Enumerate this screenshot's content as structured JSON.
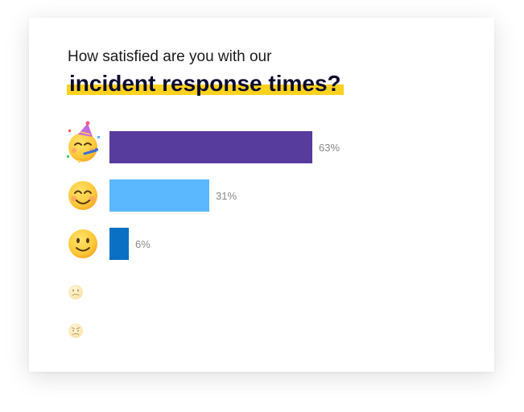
{
  "chart_data": {
    "type": "bar",
    "orientation": "horizontal",
    "subtitle": "How satisfied are you with our",
    "title": "incident response times?",
    "categories": [
      "party-face",
      "smiling-face-with-smiling-eyes",
      "slightly-smiling-face",
      "slightly-frowning-face",
      "angry-face"
    ],
    "values": [
      63,
      31,
      6,
      0,
      0
    ],
    "value_labels": [
      "63%",
      "31%",
      "6%",
      "",
      ""
    ],
    "colors": [
      "#573b9d",
      "#5bb8fe",
      "#0a70c4",
      "#cccccc",
      "#cccccc"
    ],
    "xlim": [
      0,
      100
    ],
    "grid": false
  }
}
